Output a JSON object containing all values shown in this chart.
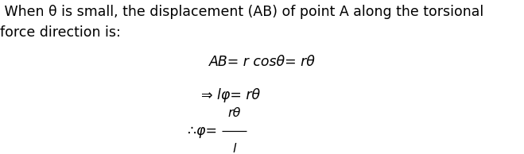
{
  "background_color": "#ffffff",
  "text_intro": " When θ is small, the displacement (AB) of point A along the torsional\nforce direction is:",
  "eq1": "AB= r cosθ= rθ",
  "eq2": "⇒ lφ= rθ",
  "eq3_prefix": "∴φ=",
  "eq3_numerator": "rθ",
  "eq3_denominator": "l",
  "font_size_text": 12.5,
  "font_size_eq": 12.5,
  "figwidth": 6.59,
  "figheight": 1.94,
  "dpi": 100
}
